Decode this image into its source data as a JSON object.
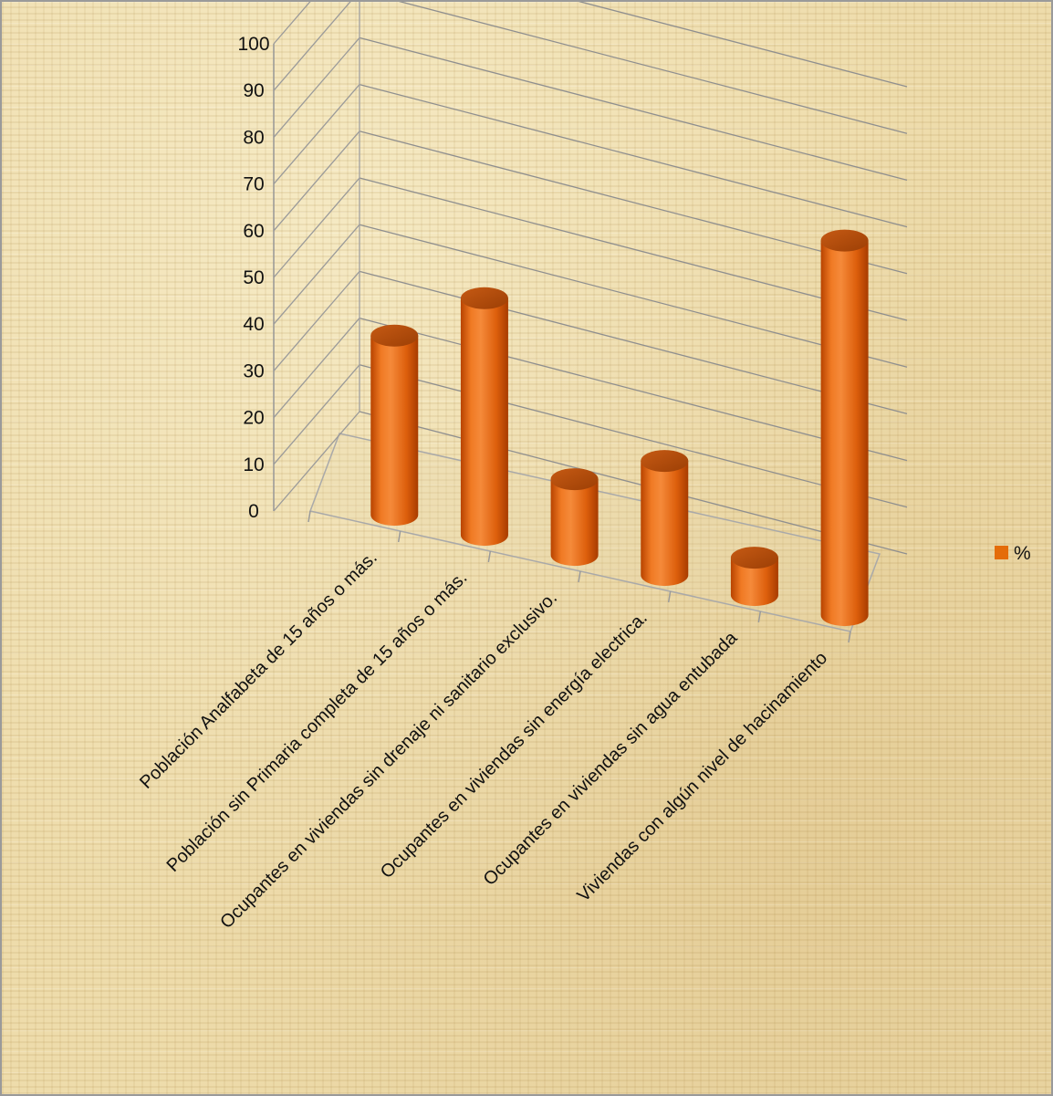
{
  "chart_data": {
    "type": "bar",
    "style": "3d-cylinder",
    "categories": [
      "Población Analfabeta de 15 años o más.",
      "Población sin Primaria completa de 15 años o más.",
      "Ocupantes en viviendas sin drenaje ni sanitario exclusivo.",
      "Ocupantes en viviendas sin energía electrica.",
      "Ocupantes en viviendas sin agua entubada",
      "Viviendas con algún nivel de hacinamiento"
    ],
    "series": [
      {
        "name": "%",
        "color": "#e46c0a",
        "values": [
          42,
          57,
          15,
          25,
          5,
          93
        ]
      }
    ],
    "ylim": [
      0,
      100
    ],
    "yticks": [
      0,
      10,
      20,
      30,
      40,
      50,
      60,
      70,
      80,
      90,
      100
    ],
    "grid": true,
    "legend_position": "right"
  }
}
